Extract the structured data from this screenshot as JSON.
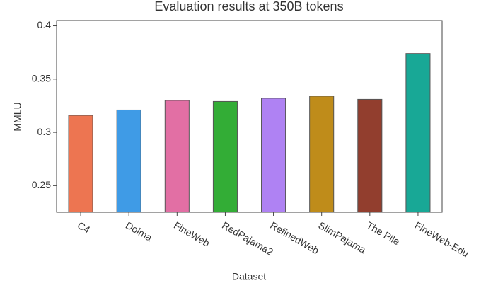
{
  "chart_data": {
    "type": "bar",
    "title": "Evaluation results at 350B tokens",
    "x_label": "Dataset",
    "y_label": "MMLU",
    "categories": [
      "C4",
      "Dolma",
      "FineWeb",
      "RedPajama2",
      "RefinedWeb",
      "SlimPajama",
      "The Pile",
      "FineWeb-Edu"
    ],
    "values": [
      0.316,
      0.321,
      0.33,
      0.329,
      0.332,
      0.334,
      0.331,
      0.374
    ],
    "colors": [
      "#ed7551",
      "#3f9be6",
      "#e26fa4",
      "#33ad36",
      "#af82f3",
      "#bf8c1a",
      "#923e2e",
      "#18a896"
    ],
    "ylim": [
      0.225,
      0.405
    ],
    "yticks": [
      0.25,
      0.3,
      0.35,
      0.4
    ],
    "grid": false
  }
}
